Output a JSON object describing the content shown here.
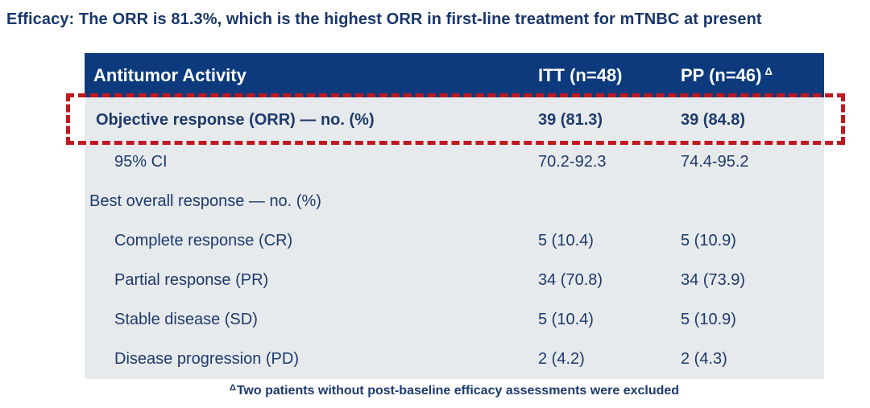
{
  "title": "Efficacy: The ORR is 81.3%, which is the highest ORR in first-line treatment for mTNBC at present",
  "table": {
    "header": {
      "col1": "Antitumor Activity",
      "col2": "ITT (n=48)",
      "col3": "PP (n=46)",
      "col3_superscript": "Δ"
    },
    "rows": [
      {
        "label": "Objective response (ORR) — no. (%)",
        "itt": "39 (81.3)",
        "pp": "39 (84.8)",
        "indent": 1,
        "bold": true,
        "highlighted": true
      },
      {
        "label": "95% CI",
        "itt": "70.2-92.3",
        "pp": "74.4-95.2",
        "indent": 2,
        "bold": false,
        "highlighted": false
      },
      {
        "label": "Best overall response — no. (%)",
        "itt": "",
        "pp": "",
        "indent": 0,
        "bold": false,
        "highlighted": false
      },
      {
        "label": "Complete response (CR)",
        "itt": "5 (10.4)",
        "pp": "5 (10.9)",
        "indent": 2,
        "bold": false,
        "highlighted": false
      },
      {
        "label": "Partial response (PR)",
        "itt": "34 (70.8)",
        "pp": "34 (73.9)",
        "indent": 2,
        "bold": false,
        "highlighted": false
      },
      {
        "label": "Stable disease (SD)",
        "itt": "5 (10.4)",
        "pp": "5 (10.9)",
        "indent": 2,
        "bold": false,
        "highlighted": false
      },
      {
        "label": "Disease progression (PD)",
        "itt": "2 (4.2)",
        "pp": "2 (4.3)",
        "indent": 2,
        "bold": false,
        "highlighted": false
      }
    ]
  },
  "footnote": {
    "superscript": "Δ",
    "text": "Two patients without post-baseline efficacy assessments were excluded"
  },
  "colors": {
    "header_bg": "#0C3A7D",
    "body_bg": "#E7EAEC",
    "text_navy": "#1D3A6C",
    "title_navy": "#19366B",
    "highlight_red": "#C01820"
  }
}
